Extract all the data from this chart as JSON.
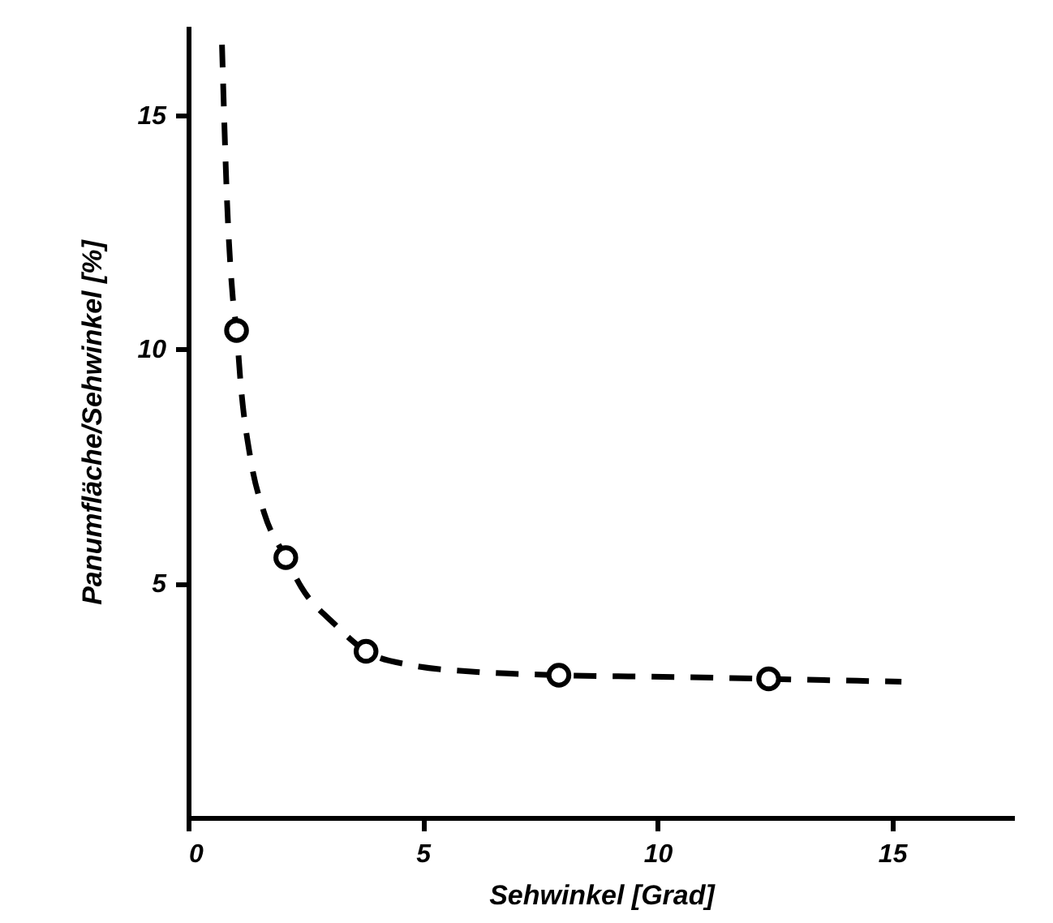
{
  "chart_data": {
    "type": "scatter",
    "xlabel": "Sehwinkel [Grad]",
    "ylabel": "Panumfläche/Sehwinkel [%]",
    "xlim": [
      0,
      17.6
    ],
    "ylim": [
      0,
      16.9
    ],
    "xticks": [
      0,
      5,
      10,
      15
    ],
    "yticks": [
      5,
      10,
      15
    ],
    "grid": false,
    "series": [
      {
        "type": "line",
        "color": "#000000",
        "marker": "none",
        "line_style": "dashed",
        "x": [
          0.72,
          0.83,
          0.95,
          1.03,
          1.12,
          1.33,
          1.62,
          2.08,
          2.41,
          3.13,
          3.79,
          4.71,
          6.15,
          7.9,
          10.46,
          12.37,
          15.2
        ],
        "values": [
          16.5,
          13.1,
          11.1,
          10.4,
          9.24,
          7.65,
          6.5,
          5.55,
          4.92,
          4.12,
          3.55,
          3.26,
          3.11,
          3.04,
          3.0,
          2.96,
          2.9
        ]
      },
      {
        "color": "#000000",
        "marker": "circle",
        "x": [
          1.03,
          2.08,
          3.79,
          7.9,
          12.37
        ],
        "values": [
          10.4,
          5.55,
          3.55,
          3.04,
          2.96
        ]
      }
    ]
  }
}
